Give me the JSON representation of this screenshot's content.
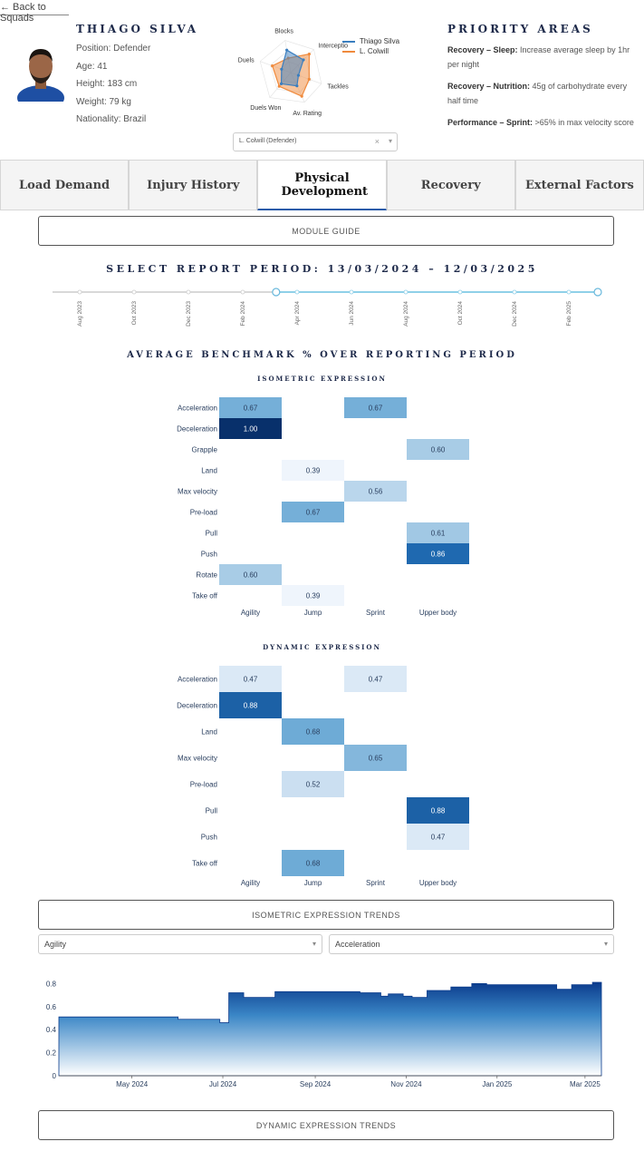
{
  "back_link": "← Back to Squads",
  "player": {
    "name": "THIAGO SILVA",
    "info": [
      "Position: Defender",
      "Age: 41",
      "Height: 183 cm",
      "Weight: 79 kg",
      "Nationality: Brazil"
    ]
  },
  "radar": {
    "axes": [
      "Blocks",
      "Interceptio",
      "Tackles",
      "Av. Rating",
      "Duels Won",
      "Duels"
    ],
    "series": [
      {
        "name": "Thiago Silva",
        "color": "#3a7ebf",
        "values": [
          0.7,
          0.55,
          0.25,
          0.45,
          0.45,
          0.3
        ]
      },
      {
        "name": "L. Colwill",
        "color": "#f08a3c",
        "values": [
          0.45,
          0.8,
          0.6,
          0.8,
          0.55,
          0.6
        ]
      }
    ]
  },
  "compare_select": {
    "value": "L. Colwill (Defender)",
    "clear": "×",
    "caret": "▾"
  },
  "priority": {
    "title": "PRIORITY AREAS",
    "items": [
      {
        "label": "Recovery – Sleep:",
        "text": " Increase average sleep by 1hr per night"
      },
      {
        "label": "Recovery – Nutrition:",
        "text": " 45g of carbohydrate every half time"
      },
      {
        "label": "Performance – Sprint:",
        "text": " >65% in max velocity score"
      }
    ]
  },
  "tabs": [
    "Load Demand",
    "Injury History",
    "Physical Development",
    "Recovery",
    "External Factors"
  ],
  "module_guide": "MODULE GUIDE",
  "period_title": "SELECT REPORT PERIOD: 13/03/2024 – 12/03/2025",
  "slider_ticks": [
    "Aug 2023",
    "Oct 2023",
    "Dec 2023",
    "Feb 2024",
    "Apr 2024",
    "Jun 2024",
    "Aug 2024",
    "Oct 2024",
    "Dec 2024",
    "Feb 2025"
  ],
  "slider_range": {
    "start_fraction": 0.41,
    "end_fraction": 1.0
  },
  "benchmark_title": "AVERAGE BENCHMARK % OVER REPORTING PERIOD",
  "isometric": {
    "title": "ISOMETRIC EXPRESSION",
    "rows": [
      "Acceleration",
      "Deceleration",
      "Grapple",
      "Land",
      "Max velocity",
      "Pre-load",
      "Pull",
      "Push",
      "Rotate",
      "Take off"
    ],
    "cols": [
      "Agility",
      "Jump",
      "Sprint",
      "Upper body"
    ],
    "cells": [
      [
        0.67,
        null,
        0.67,
        null
      ],
      [
        1.0,
        null,
        null,
        null
      ],
      [
        null,
        null,
        null,
        0.6
      ],
      [
        null,
        0.39,
        null,
        null
      ],
      [
        null,
        null,
        0.56,
        null
      ],
      [
        null,
        0.67,
        null,
        null
      ],
      [
        null,
        null,
        null,
        0.61
      ],
      [
        null,
        null,
        null,
        0.86
      ],
      [
        0.6,
        null,
        null,
        null
      ],
      [
        null,
        0.39,
        null,
        null
      ]
    ]
  },
  "dynamic": {
    "title": "DYNAMIC EXPRESSION",
    "rows": [
      "Acceleration",
      "Deceleration",
      "Land",
      "Max velocity",
      "Pre-load",
      "Pull",
      "Push",
      "Take off"
    ],
    "cols": [
      "Agility",
      "Jump",
      "Sprint",
      "Upper body"
    ],
    "cells": [
      [
        0.47,
        null,
        0.47,
        null
      ],
      [
        0.88,
        null,
        null,
        null
      ],
      [
        null,
        0.68,
        null,
        null
      ],
      [
        null,
        null,
        0.65,
        null
      ],
      [
        null,
        0.52,
        null,
        null
      ],
      [
        null,
        null,
        null,
        0.88
      ],
      [
        null,
        null,
        null,
        0.47
      ],
      [
        null,
        0.68,
        null,
        null
      ]
    ]
  },
  "iso_trends_btn": "ISOMETRIC EXPRESSION TRENDS",
  "dropdowns": {
    "left": "Agility",
    "right": "Acceleration",
    "caret": "▾"
  },
  "chart_data": {
    "type": "area",
    "x": [
      "2024-03-13",
      "2024-04-01",
      "2024-04-15",
      "2024-05-01",
      "2024-05-15",
      "2024-06-01",
      "2024-06-15",
      "2024-06-24",
      "2024-06-29",
      "2024-07-05",
      "2024-07-15",
      "2024-07-25",
      "2024-08-05",
      "2024-08-20",
      "2024-09-05",
      "2024-09-20",
      "2024-10-01",
      "2024-10-10",
      "2024-10-15",
      "2024-10-20",
      "2024-10-30",
      "2024-11-05",
      "2024-11-15",
      "2024-12-01",
      "2024-12-15",
      "2024-12-25",
      "2025-01-05",
      "2025-01-20",
      "2025-02-01",
      "2025-02-10",
      "2025-02-20",
      "2025-03-01",
      "2025-03-06",
      "2025-03-12"
    ],
    "y": [
      0.51,
      0.51,
      0.51,
      0.51,
      0.51,
      0.49,
      0.49,
      0.49,
      0.46,
      0.72,
      0.68,
      0.68,
      0.73,
      0.73,
      0.73,
      0.73,
      0.72,
      0.72,
      0.69,
      0.71,
      0.69,
      0.68,
      0.74,
      0.77,
      0.8,
      0.79,
      0.79,
      0.79,
      0.79,
      0.75,
      0.79,
      0.79,
      0.81,
      0.8
    ],
    "xlabel": "",
    "ylabel": "",
    "ylim": [
      0,
      0.85
    ],
    "y_ticks": [
      "0",
      "0.2",
      "0.4",
      "0.6",
      "0.8"
    ],
    "x_ticks": [
      "May 2024",
      "Jul 2024",
      "Sep 2024",
      "Nov 2024",
      "Jan 2025",
      "Mar 2025"
    ],
    "x_tick_dates": [
      "2024-05-01",
      "2024-07-01",
      "2024-09-01",
      "2024-11-01",
      "2025-01-01",
      "2025-03-01"
    ],
    "colors": {
      "top": "#0b3b8c",
      "bottom": "#ffffff"
    }
  },
  "dyn_trends_btn": "DYNAMIC EXPRESSION TRENDS"
}
